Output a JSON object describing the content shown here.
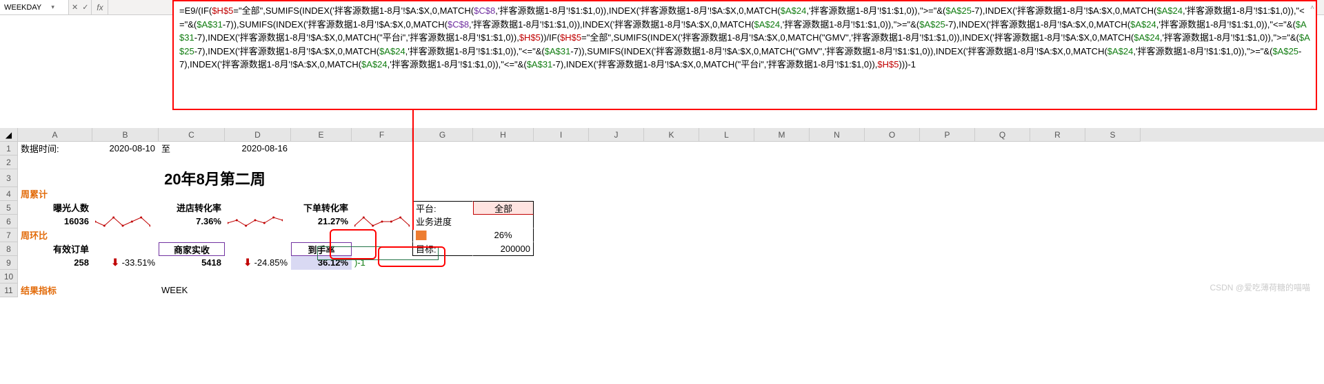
{
  "nameBox": "WEEKDAY",
  "fxLabel": "fx",
  "formula": {
    "segments": [
      {
        "t": "=E9/(IF(",
        "c": "black"
      },
      {
        "t": "$H$5",
        "c": "red"
      },
      {
        "t": "=\"全部\",SUMIFS(INDEX('拌客源数据1-8月'!$A:$X,0,MATCH(",
        "c": "black"
      },
      {
        "t": "$C$8",
        "c": "purple"
      },
      {
        "t": ",'拌客源数据1-8月'!$1:$1,0)),INDEX('拌客源数据1-8月'!$A:$X,0,MATCH(",
        "c": "black"
      },
      {
        "t": "$A$24",
        "c": "green"
      },
      {
        "t": ",'拌客源数据1-8月'!$1:$1,0)),\">=\"&(",
        "c": "black"
      },
      {
        "t": "$A$25",
        "c": "green"
      },
      {
        "t": "-7),INDEX('拌客源数据1-8月'!$A:$X,0,MATCH(",
        "c": "black"
      },
      {
        "t": "$A$24",
        "c": "green"
      },
      {
        "t": ",'拌客源数据1-8月'!$1:$1,0)),\"<=\"&(",
        "c": "black"
      },
      {
        "t": "$A$31",
        "c": "green"
      },
      {
        "t": "-7)),SUMIFS(INDEX('拌客源数据1-8月'!$A:$X,0,MATCH(",
        "c": "black"
      },
      {
        "t": "$C$8",
        "c": "purple"
      },
      {
        "t": ",'拌客源数据1-8月'!$1:$1,0)),INDEX('拌客源数据1-8月'!$A:$X,0,MATCH(",
        "c": "black"
      },
      {
        "t": "$A$24",
        "c": "green"
      },
      {
        "t": ",'拌客源数据1-8月'!$1:$1,0)),\">=\"&(",
        "c": "black"
      },
      {
        "t": "$A$25",
        "c": "green"
      },
      {
        "t": "-7),INDEX('拌客源数据1-8月'!$A:$X,0,MATCH(",
        "c": "black"
      },
      {
        "t": "$A$24",
        "c": "green"
      },
      {
        "t": ",'拌客源数据1-8月'!$1:$1,0)),\"<=\"&(",
        "c": "black"
      },
      {
        "t": "$A$31",
        "c": "green"
      },
      {
        "t": "-7),INDEX('拌客源数据1-8月'!$A:$X,0,MATCH(\"平台i\",'拌客源数据1-8月'!$1:$1,0)),",
        "c": "black"
      },
      {
        "t": "$H$5",
        "c": "red"
      },
      {
        "t": "))/IF(",
        "c": "black"
      },
      {
        "t": "$H$5",
        "c": "red"
      },
      {
        "t": "=\"全部\",SUMIFS(INDEX('拌客源数据1-8月'!$A:$X,0,MATCH(\"GMV\",'拌客源数据1-8月'!$1:$1,0)),INDEX('拌客源数据1-8月'!$A:$X,0,MATCH(",
        "c": "black"
      },
      {
        "t": "$A$24",
        "c": "green"
      },
      {
        "t": ",'拌客源数据1-8月'!$1:$1,0)),\">=\"&(",
        "c": "black"
      },
      {
        "t": "$A$25",
        "c": "green"
      },
      {
        "t": "-7),INDEX('拌客源数据1-8月'!$A:$X,0,MATCH(",
        "c": "black"
      },
      {
        "t": "$A$24",
        "c": "green"
      },
      {
        "t": ",'拌客源数据1-8月'!$1:$1,0)),\"<=\"&(",
        "c": "black"
      },
      {
        "t": "$A$31",
        "c": "green"
      },
      {
        "t": "-7)),SUMIFS(INDEX('拌客源数据1-8月'!$A:$X,0,MATCH(\"GMV\",'拌客源数据1-8月'!$1:$1,0)),INDEX('拌客源数据1-8月'!$A:$X,0,MATCH(",
        "c": "black"
      },
      {
        "t": "$A$24",
        "c": "green"
      },
      {
        "t": ",'拌客源数据1-8月'!$1:$1,0)),\">=\"&(",
        "c": "black"
      },
      {
        "t": "$A$25",
        "c": "green"
      },
      {
        "t": "-7),INDEX('拌客源数据1-8月'!$A:$X,0,MATCH(",
        "c": "black"
      },
      {
        "t": "$A$24",
        "c": "green"
      },
      {
        "t": ",'拌客源数据1-8月'!$1:$1,0)),\"<=\"&(",
        "c": "black"
      },
      {
        "t": "$A$31",
        "c": "green"
      },
      {
        "t": "-7),INDEX('拌客源数据1-8月'!$A:$X,0,MATCH(\"平台i\",'拌客源数据1-8月'!$1:$1,0)),",
        "c": "black"
      },
      {
        "t": "$H$5",
        "c": "red"
      },
      {
        "t": ")))-1",
        "c": "black"
      }
    ]
  },
  "activeCellDisplay": ")-1",
  "columns": [
    "A",
    "B",
    "C",
    "D",
    "E",
    "F",
    "G",
    "H",
    "I",
    "J",
    "K",
    "L",
    "M",
    "N",
    "O",
    "P",
    "Q",
    "R",
    "S"
  ],
  "rows": {
    "1": {
      "A": "数据时间:",
      "B": "2020-08-10",
      "C": "至",
      "D": "2020-08-16"
    },
    "3": {
      "title": "20年8月第二周"
    },
    "4": {
      "A": "周累计"
    },
    "5": {
      "A": "曝光人数",
      "C": "进店转化率",
      "E": "下单转化率",
      "G": "平台:",
      "H": "全部"
    },
    "6": {
      "A": "16036",
      "C": "7.36%",
      "E": "21.27%",
      "G": "业务进度"
    },
    "7": {
      "A": "周环比",
      "H": "26%"
    },
    "8": {
      "A": "有效订单",
      "C": "商家实收",
      "E": "到手率",
      "G": "目标:",
      "H": "200000"
    },
    "9": {
      "A": "258",
      "B": "-33.51%",
      "C": "5418",
      "D": "-24.85%",
      "E": "36.12%"
    },
    "11": {
      "A": "结果指标",
      "C": "WEEK"
    }
  },
  "sparklines": {
    "s1": {
      "points": [
        6,
        5,
        7,
        5,
        6,
        7,
        5
      ],
      "color": "#c00000"
    },
    "s2": {
      "points": [
        5,
        6,
        4,
        6,
        5,
        7,
        6
      ],
      "color": "#c00000"
    },
    "s3": {
      "points": [
        5,
        7,
        5,
        6,
        6,
        7,
        5
      ],
      "color": "#c00000"
    }
  },
  "progress": {
    "pct": 26,
    "fill": "#ed7d31"
  },
  "colors": {
    "headerBg": "#e6e6e6",
    "redBox": "#ff0000",
    "orangeText": "#e26b0a",
    "redText": "#c00000",
    "activeGreen": "#217346",
    "dropdownFill": "#ffe4e1",
    "dropdownBorder": "#c00000",
    "boxedBorder": "#7030a0"
  },
  "watermark": "CSDN @爱吃薄荷糖的喵喵"
}
